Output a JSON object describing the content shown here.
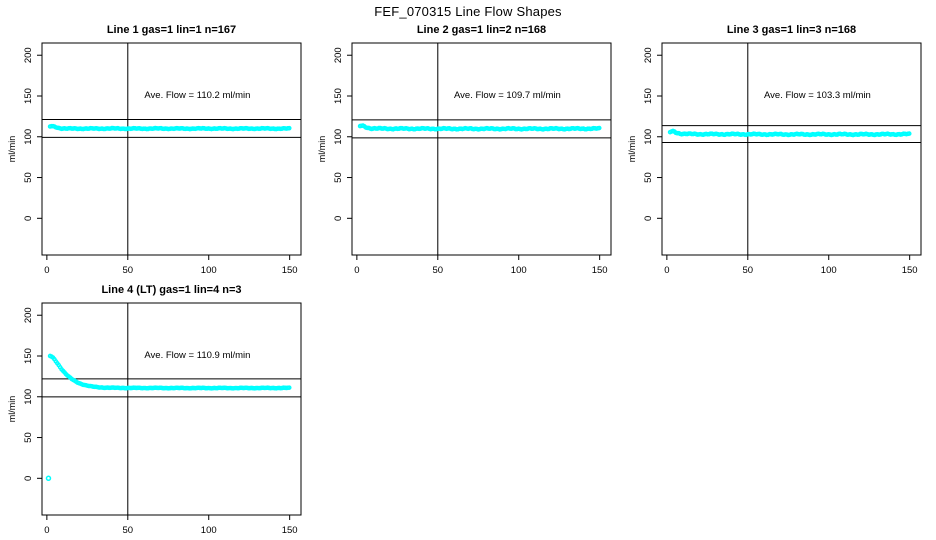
{
  "figure": {
    "title": "FEF_070315  Line Flow Shapes",
    "background": "#ffffff",
    "axis_color": "#000000"
  },
  "chart_data": [
    {
      "type": "scatter",
      "title": "Line 1 gas=1 lin=1 n=167",
      "annotation": "Ave. Flow =  110.2  ml/min",
      "ave_flow": 110.2,
      "n": 167,
      "ylabel": "ml/min",
      "xlabel": "",
      "x_ticks": [
        0,
        50,
        100,
        150
      ],
      "y_ticks": [
        0,
        50,
        100,
        150,
        200
      ],
      "xlim": [
        -3,
        157
      ],
      "ylim": [
        -45,
        215
      ],
      "ref_lines_h": [
        121.2,
        99.2
      ],
      "ref_line_v": 50,
      "point_color": "#00ffff",
      "jitter": 0.6,
      "band": [
        [
          2,
          112.5
        ],
        [
          3,
          113
        ],
        [
          5,
          112.3
        ],
        [
          7,
          111
        ],
        [
          9,
          110.3
        ],
        [
          12,
          110
        ],
        [
          20,
          110
        ],
        [
          30,
          110
        ],
        [
          40,
          110.1
        ],
        [
          50,
          110
        ],
        [
          60,
          110
        ],
        [
          70,
          110.1
        ],
        [
          80,
          110
        ],
        [
          90,
          110
        ],
        [
          100,
          110.1
        ],
        [
          110,
          110
        ],
        [
          120,
          110
        ],
        [
          130,
          110.1
        ],
        [
          140,
          110
        ],
        [
          150,
          110
        ]
      ],
      "outliers": []
    },
    {
      "type": "scatter",
      "title": "Line 2 gas=1 lin=2 n=168",
      "annotation": "Ave. Flow =  109.7  ml/min",
      "ave_flow": 109.7,
      "n": 168,
      "ylabel": "ml/min",
      "xlabel": "",
      "x_ticks": [
        0,
        50,
        100,
        150
      ],
      "y_ticks": [
        0,
        50,
        100,
        150,
        200
      ],
      "xlim": [
        -3,
        157
      ],
      "ylim": [
        -45,
        215
      ],
      "ref_lines_h": [
        120.7,
        98.7
      ],
      "ref_line_v": 50,
      "point_color": "#00ffff",
      "jitter": 0.8,
      "band": [
        [
          2,
          113
        ],
        [
          3,
          113.5
        ],
        [
          4,
          113.2
        ],
        [
          6,
          111.5
        ],
        [
          8,
          110.5
        ],
        [
          10,
          110.2
        ],
        [
          15,
          110
        ],
        [
          25,
          109.9
        ],
        [
          40,
          109.9
        ],
        [
          60,
          109.8
        ],
        [
          80,
          109.8
        ],
        [
          100,
          109.8
        ],
        [
          120,
          109.8
        ],
        [
          135,
          109.9
        ],
        [
          150,
          110
        ]
      ],
      "outliers": []
    },
    {
      "type": "scatter",
      "title": "Line 3 gas=1 lin=3 n=168",
      "annotation": "Ave. Flow =  103.3  ml/min",
      "ave_flow": 103.3,
      "n": 168,
      "ylabel": "ml/min",
      "xlabel": "",
      "x_ticks": [
        0,
        50,
        100,
        150
      ],
      "y_ticks": [
        0,
        50,
        100,
        150,
        200
      ],
      "xlim": [
        -3,
        157
      ],
      "ylim": [
        -45,
        215
      ],
      "ref_lines_h": [
        113.6,
        93.0
      ],
      "ref_line_v": 50,
      "point_color": "#00ffff",
      "jitter": 0.8,
      "band": [
        [
          2,
          105.5
        ],
        [
          3,
          106.5
        ],
        [
          4,
          106.8
        ],
        [
          6,
          105
        ],
        [
          8,
          104
        ],
        [
          10,
          103.6
        ],
        [
          15,
          103.3
        ],
        [
          25,
          103.2
        ],
        [
          40,
          103.1
        ],
        [
          60,
          103
        ],
        [
          80,
          102.9
        ],
        [
          100,
          103
        ],
        [
          120,
          102.9
        ],
        [
          135,
          103
        ],
        [
          150,
          103.2
        ]
      ],
      "outliers": []
    },
    {
      "type": "scatter",
      "title": "Line 4 (LT) gas=1 lin=4 n=3",
      "annotation": "Ave. Flow =  110.9  ml/min",
      "ave_flow": 110.9,
      "n": 3,
      "ylabel": "ml/min",
      "xlabel": "",
      "x_ticks": [
        0,
        50,
        100,
        150
      ],
      "y_ticks": [
        0,
        50,
        100,
        150,
        200
      ],
      "xlim": [
        -3,
        157
      ],
      "ylim": [
        -45,
        215
      ],
      "ref_lines_h": [
        122.0,
        99.8
      ],
      "ref_line_v": 50,
      "point_color": "#00ffff",
      "jitter": 0.4,
      "band": [
        [
          2,
          150
        ],
        [
          3,
          149.2
        ],
        [
          4,
          147.5
        ],
        [
          5,
          145.2
        ],
        [
          6,
          142.5
        ],
        [
          7,
          139.8
        ],
        [
          8,
          137
        ],
        [
          9,
          134.3
        ],
        [
          10,
          131.8
        ],
        [
          11,
          129.5
        ],
        [
          12,
          127.4
        ],
        [
          13,
          125.5
        ],
        [
          14,
          123.8
        ],
        [
          15,
          122.3
        ],
        [
          16,
          120.9
        ],
        [
          17,
          119.7
        ],
        [
          18,
          118.6
        ],
        [
          19,
          117.6
        ],
        [
          20,
          116.7
        ],
        [
          22,
          115.2
        ],
        [
          24,
          114.1
        ],
        [
          26,
          113.2
        ],
        [
          28,
          112.5
        ],
        [
          30,
          112
        ],
        [
          33,
          111.5
        ],
        [
          36,
          111.2
        ],
        [
          40,
          111
        ],
        [
          45,
          110.9
        ],
        [
          50,
          110.8
        ],
        [
          60,
          110.8
        ],
        [
          80,
          110.7
        ],
        [
          100,
          110.7
        ],
        [
          120,
          110.7
        ],
        [
          150,
          110.8
        ]
      ],
      "outliers": [
        [
          1,
          0
        ]
      ]
    }
  ]
}
